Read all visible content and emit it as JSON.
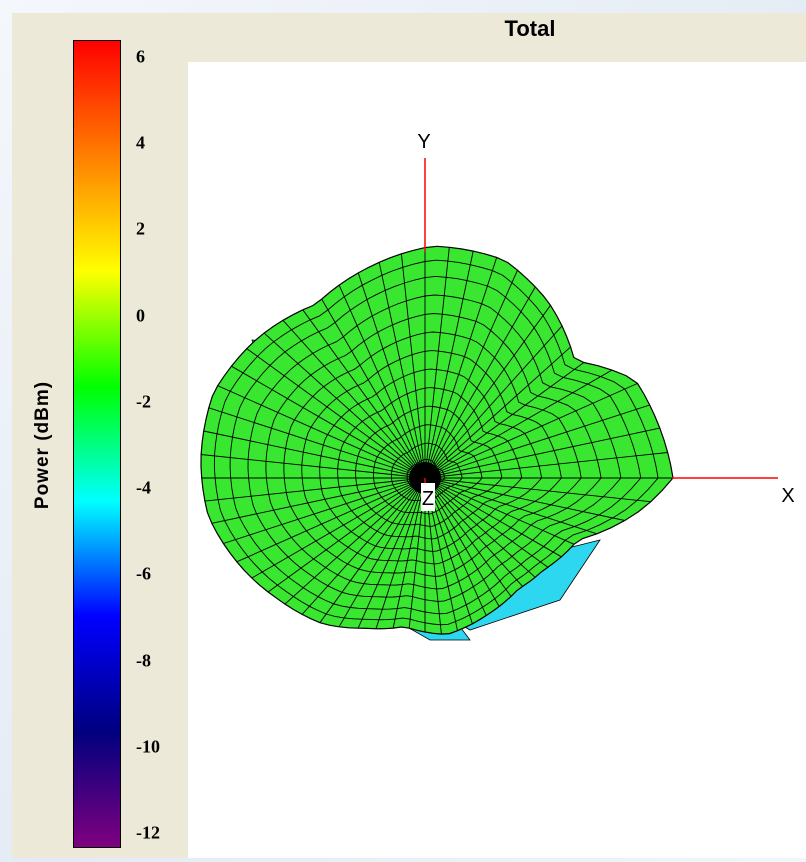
{
  "chart_data": {
    "type": "3d-radiation-pattern",
    "title": "Total",
    "colorbar": {
      "label": "Power  (dBm)",
      "range": [
        -12,
        6
      ],
      "ticks": [
        {
          "value": 6,
          "label": "6"
        },
        {
          "value": 4,
          "label": "4"
        },
        {
          "value": 2,
          "label": "2"
        },
        {
          "value": 0,
          "label": "0"
        },
        {
          "value": -2,
          "label": "-2"
        },
        {
          "value": -4,
          "label": "-4"
        },
        {
          "value": -6,
          "label": "-6"
        },
        {
          "value": -8,
          "label": "-8"
        },
        {
          "value": -10,
          "label": "-10"
        },
        {
          "value": -12,
          "label": "-12"
        }
      ],
      "colormap": [
        "#7f007f",
        "#00007f",
        "#0000ff",
        "#00ffff",
        "#00ff00",
        "#ffff00",
        "#ff7f00",
        "#ff0000"
      ]
    },
    "axes": {
      "x_label": "X",
      "y_label": "Y",
      "z_label": "Z"
    },
    "pattern_color": "#39e630",
    "secondary_color": "#2ed7f0",
    "axis_color": "#ff0000"
  }
}
